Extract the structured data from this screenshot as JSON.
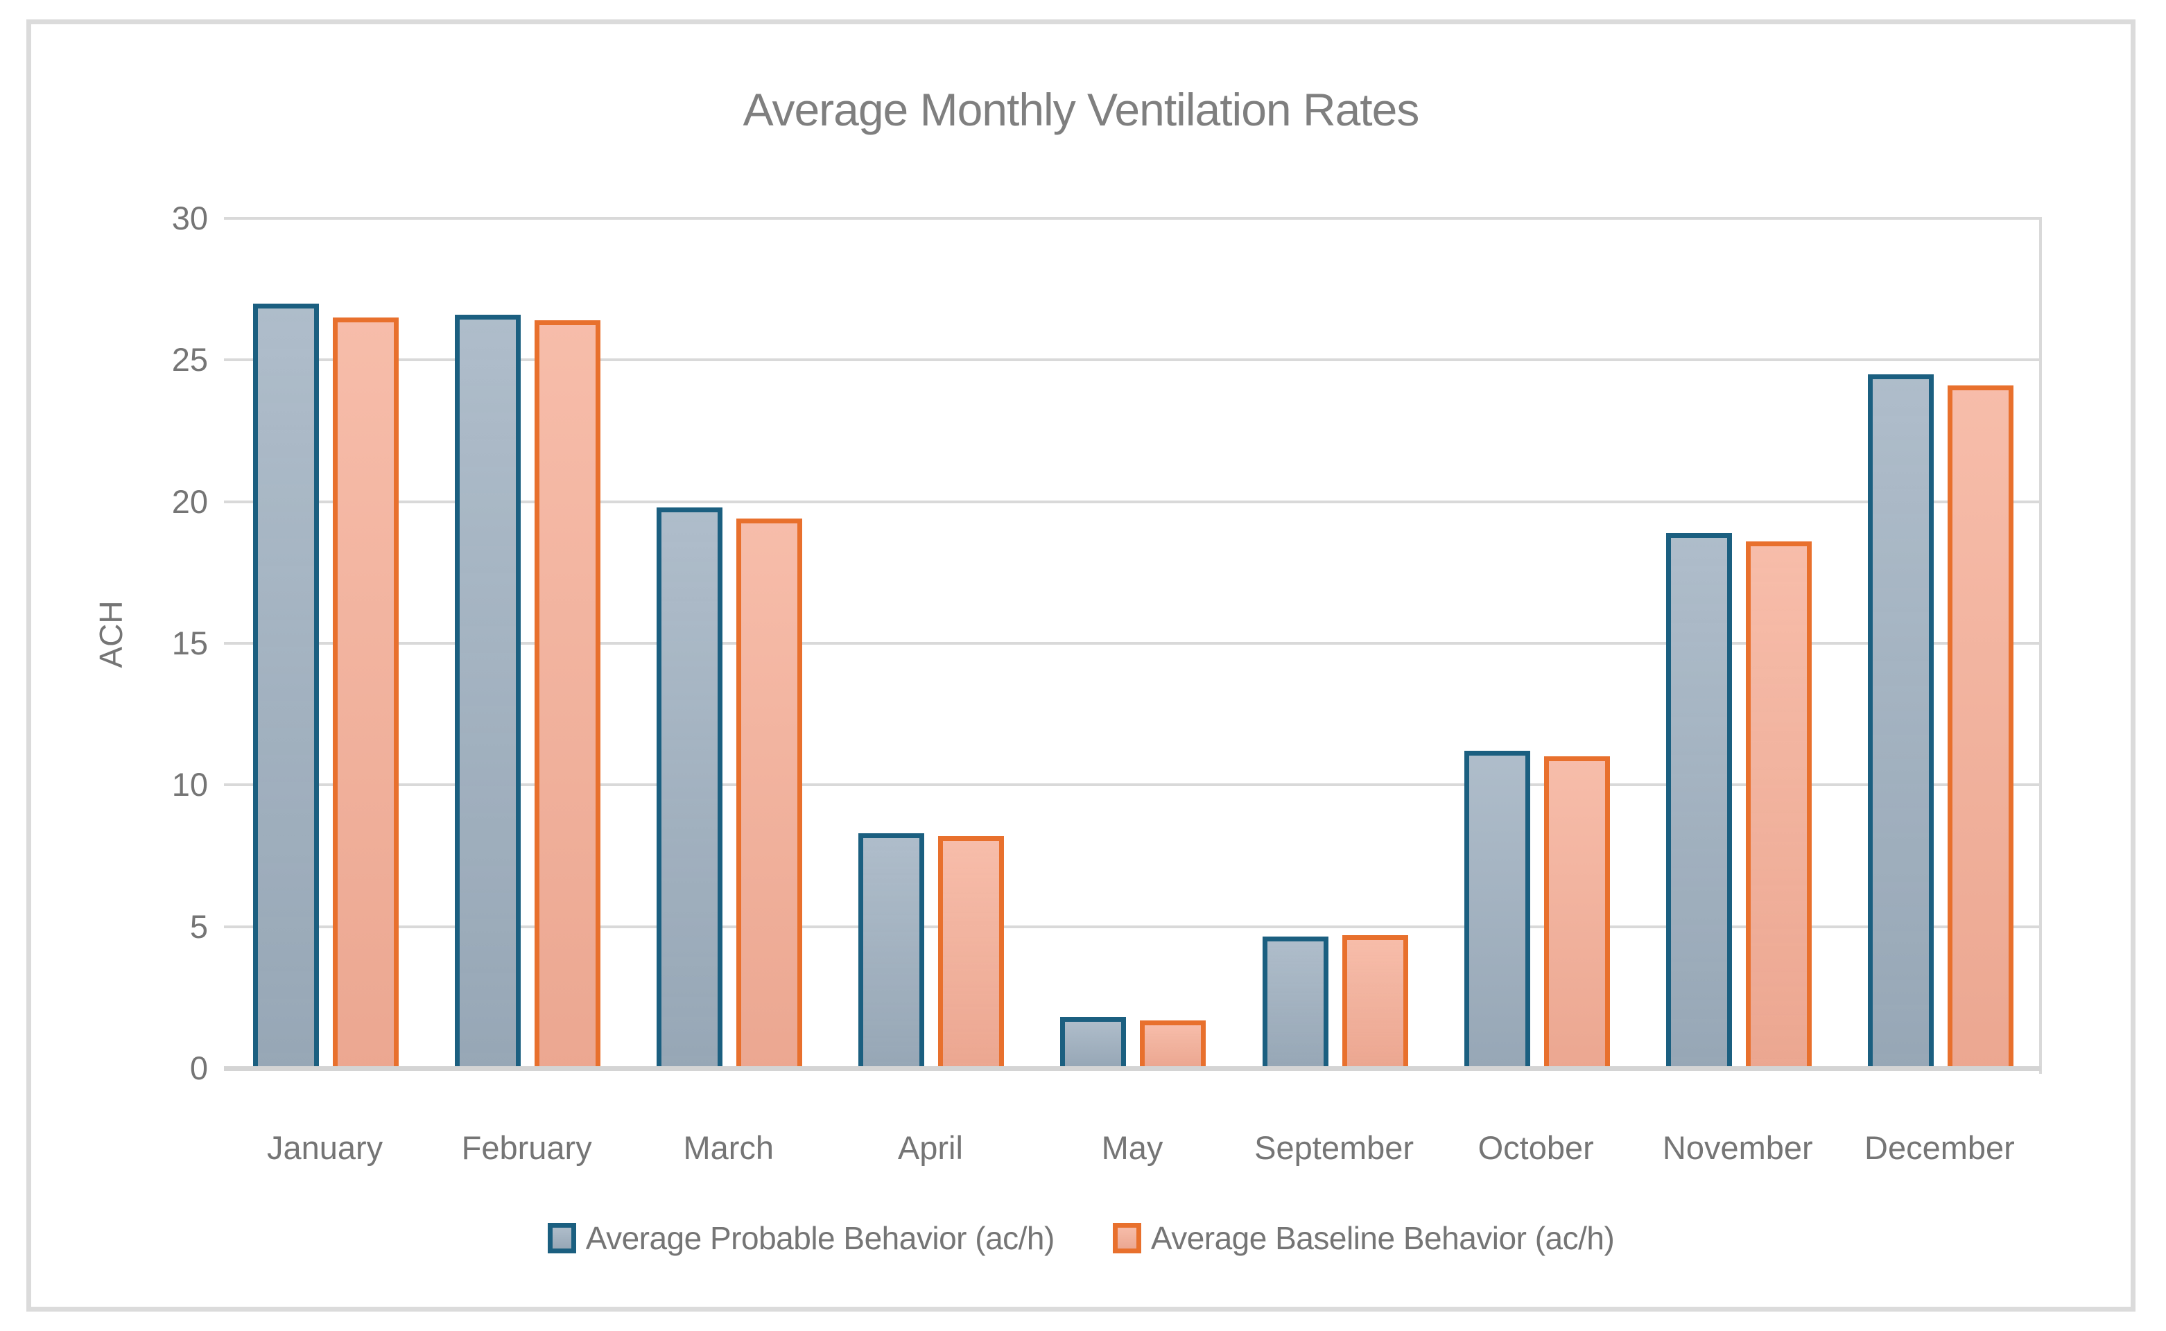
{
  "chart_data": {
    "type": "bar",
    "title": "Average Monthly Ventilation Rates",
    "xlabel": "",
    "ylabel": "ACH",
    "ylim": [
      0,
      30
    ],
    "yticks": [
      0,
      5,
      10,
      15,
      20,
      25,
      30
    ],
    "grid": true,
    "legend_position": "bottom",
    "categories": [
      "January",
      "February",
      "March",
      "April",
      "May",
      "September",
      "October",
      "November",
      "December"
    ],
    "series": [
      {
        "key": "probable",
        "name": "Average Probable Behavior (ac/h)",
        "border_color": "#1b5f80",
        "fill_color": "#9fb0c0",
        "values": [
          27.0,
          26.6,
          19.8,
          8.3,
          1.8,
          4.65,
          11.2,
          18.9,
          24.5
        ]
      },
      {
        "key": "baseline",
        "name": "Average Baseline Behavior (ac/h)",
        "border_color": "#e8702d",
        "fill_color": "#f5ae97",
        "values": [
          26.5,
          26.4,
          19.4,
          8.2,
          1.7,
          4.7,
          11.0,
          18.6,
          24.1
        ]
      }
    ],
    "colors": {
      "gridline": "#d9d9d9",
      "axis_line": "#d4d4d4",
      "frame_border": "#dbdbdb",
      "title_text": "#7f7f7f",
      "axis_text": "#757575"
    }
  }
}
